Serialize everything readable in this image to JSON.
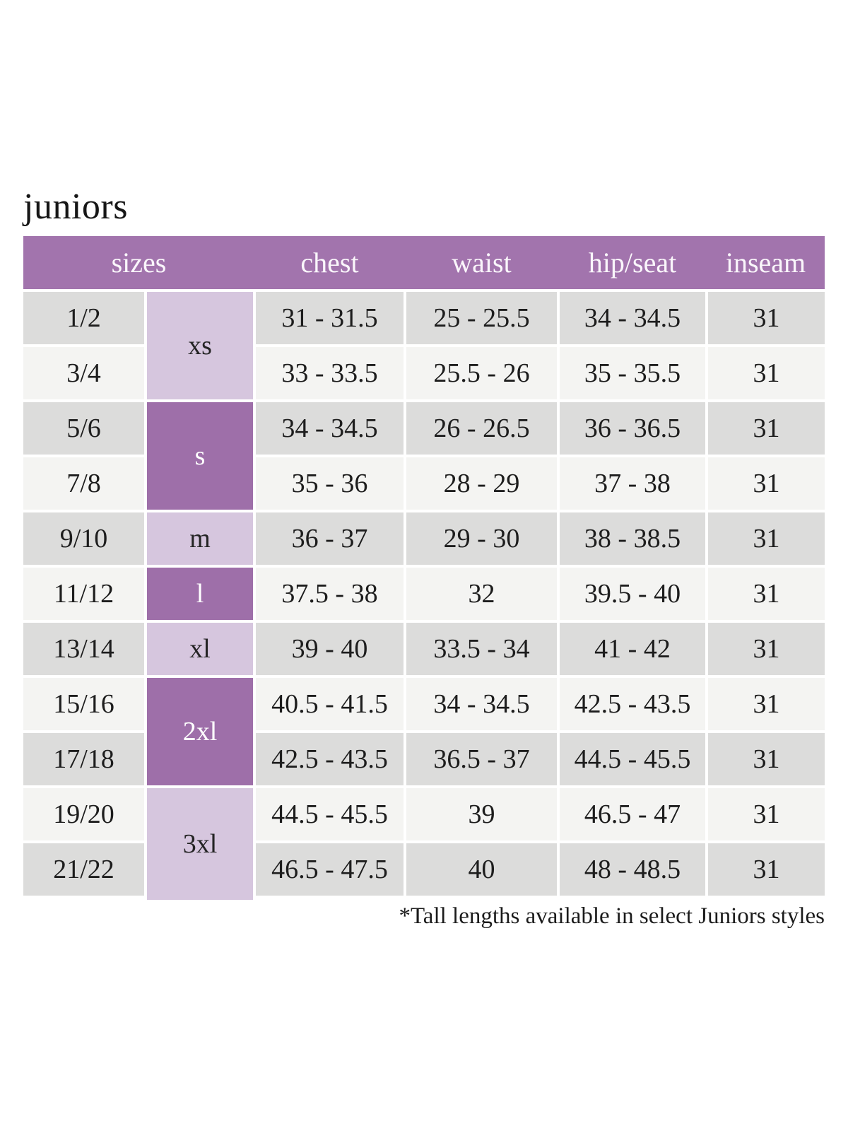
{
  "page": {
    "title": "juniors",
    "footnote": "*Tall lengths available in select Juniors styles"
  },
  "colors": {
    "header_purple": "#a274ad",
    "group_dark_purple": "#9e6fa9",
    "group_light_purple": "#d6c6de",
    "row_gray": "#dcdcdb",
    "row_light_gray": "#f4f4f2",
    "header_text": "#faf6fb",
    "body_text": "#1d1d1d"
  },
  "table": {
    "headers": [
      "sizes",
      "chest",
      "waist",
      "hip/seat",
      "inseam"
    ],
    "groups": [
      {
        "label": "xs",
        "rows_spanned": 2,
        "tone": "light"
      },
      {
        "label": "s",
        "rows_spanned": 2,
        "tone": "dark"
      },
      {
        "label": "m",
        "rows_spanned": 1,
        "tone": "light"
      },
      {
        "label": "l",
        "rows_spanned": 1,
        "tone": "dark"
      },
      {
        "label": "xl",
        "rows_spanned": 1,
        "tone": "light"
      },
      {
        "label": "2xl",
        "rows_spanned": 2,
        "tone": "dark"
      },
      {
        "label": "3xl",
        "rows_spanned": 2,
        "tone": "light"
      }
    ],
    "rows": [
      {
        "size": "1/2",
        "group": "xs",
        "chest": "31 - 31.5",
        "waist": "25 - 25.5",
        "hip_seat": "34 - 34.5",
        "inseam": "31"
      },
      {
        "size": "3/4",
        "group": "xs",
        "chest": "33 - 33.5",
        "waist": "25.5 - 26",
        "hip_seat": "35 - 35.5",
        "inseam": "31"
      },
      {
        "size": "5/6",
        "group": "s",
        "chest": "34 - 34.5",
        "waist": "26 - 26.5",
        "hip_seat": "36 - 36.5",
        "inseam": "31"
      },
      {
        "size": "7/8",
        "group": "s",
        "chest": "35 - 36",
        "waist": "28 - 29",
        "hip_seat": "37 - 38",
        "inseam": "31"
      },
      {
        "size": "9/10",
        "group": "m",
        "chest": "36 - 37",
        "waist": "29 - 30",
        "hip_seat": "38 - 38.5",
        "inseam": "31"
      },
      {
        "size": "11/12",
        "group": "l",
        "chest": "37.5 - 38",
        "waist": "32",
        "hip_seat": "39.5 - 40",
        "inseam": "31"
      },
      {
        "size": "13/14",
        "group": "xl",
        "chest": "39 - 40",
        "waist": "33.5 - 34",
        "hip_seat": "41 - 42",
        "inseam": "31"
      },
      {
        "size": "15/16",
        "group": "2xl",
        "chest": "40.5 - 41.5",
        "waist": "34 - 34.5",
        "hip_seat": "42.5 - 43.5",
        "inseam": "31"
      },
      {
        "size": "17/18",
        "group": "2xl",
        "chest": "42.5 - 43.5",
        "waist": "36.5 - 37",
        "hip_seat": "44.5 - 45.5",
        "inseam": "31"
      },
      {
        "size": "19/20",
        "group": "3xl",
        "chest": "44.5 - 45.5",
        "waist": "39",
        "hip_seat": "46.5 - 47",
        "inseam": "31"
      },
      {
        "size": "21/22",
        "group": "3xl",
        "chest": "46.5 - 47.5",
        "waist": "40",
        "hip_seat": "48 - 48.5",
        "inseam": "31"
      }
    ]
  }
}
